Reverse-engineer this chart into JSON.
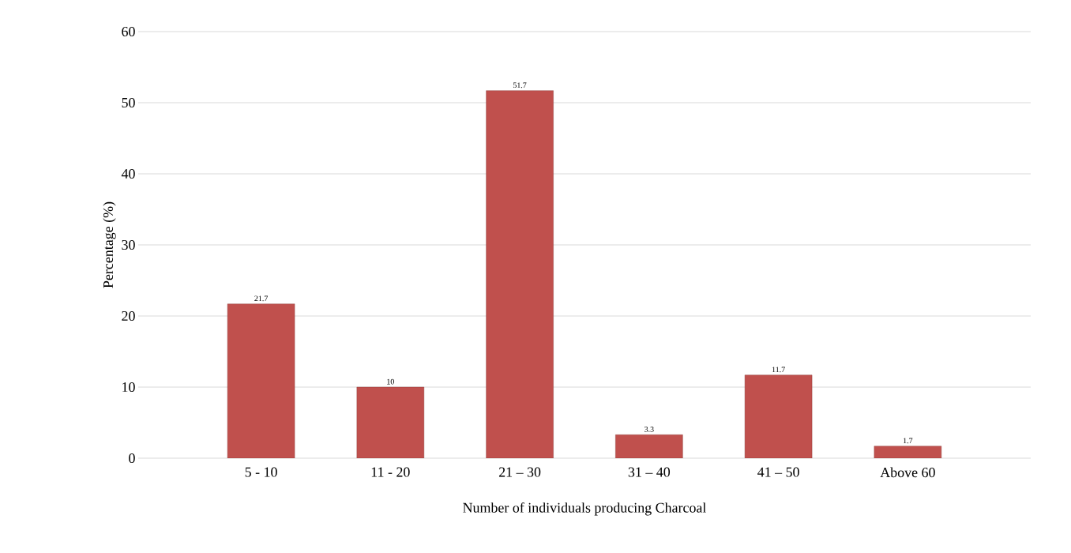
{
  "chart_data": {
    "type": "bar",
    "xlabel": "Number of individuals producing Charcoal",
    "ylabel": "Percentage (%)",
    "categories": [
      "5 - 10",
      "11 - 20",
      "21 – 30",
      "31 – 40",
      "41 – 50",
      "Above 60"
    ],
    "values": [
      21.7,
      10,
      51.7,
      3.3,
      11.7,
      1.7
    ],
    "color": "#c0504d",
    "ylim": [
      0,
      60
    ],
    "yticks": [
      0,
      10,
      20,
      30,
      40,
      50,
      60
    ],
    "grid": "y",
    "data_labels": true
  }
}
